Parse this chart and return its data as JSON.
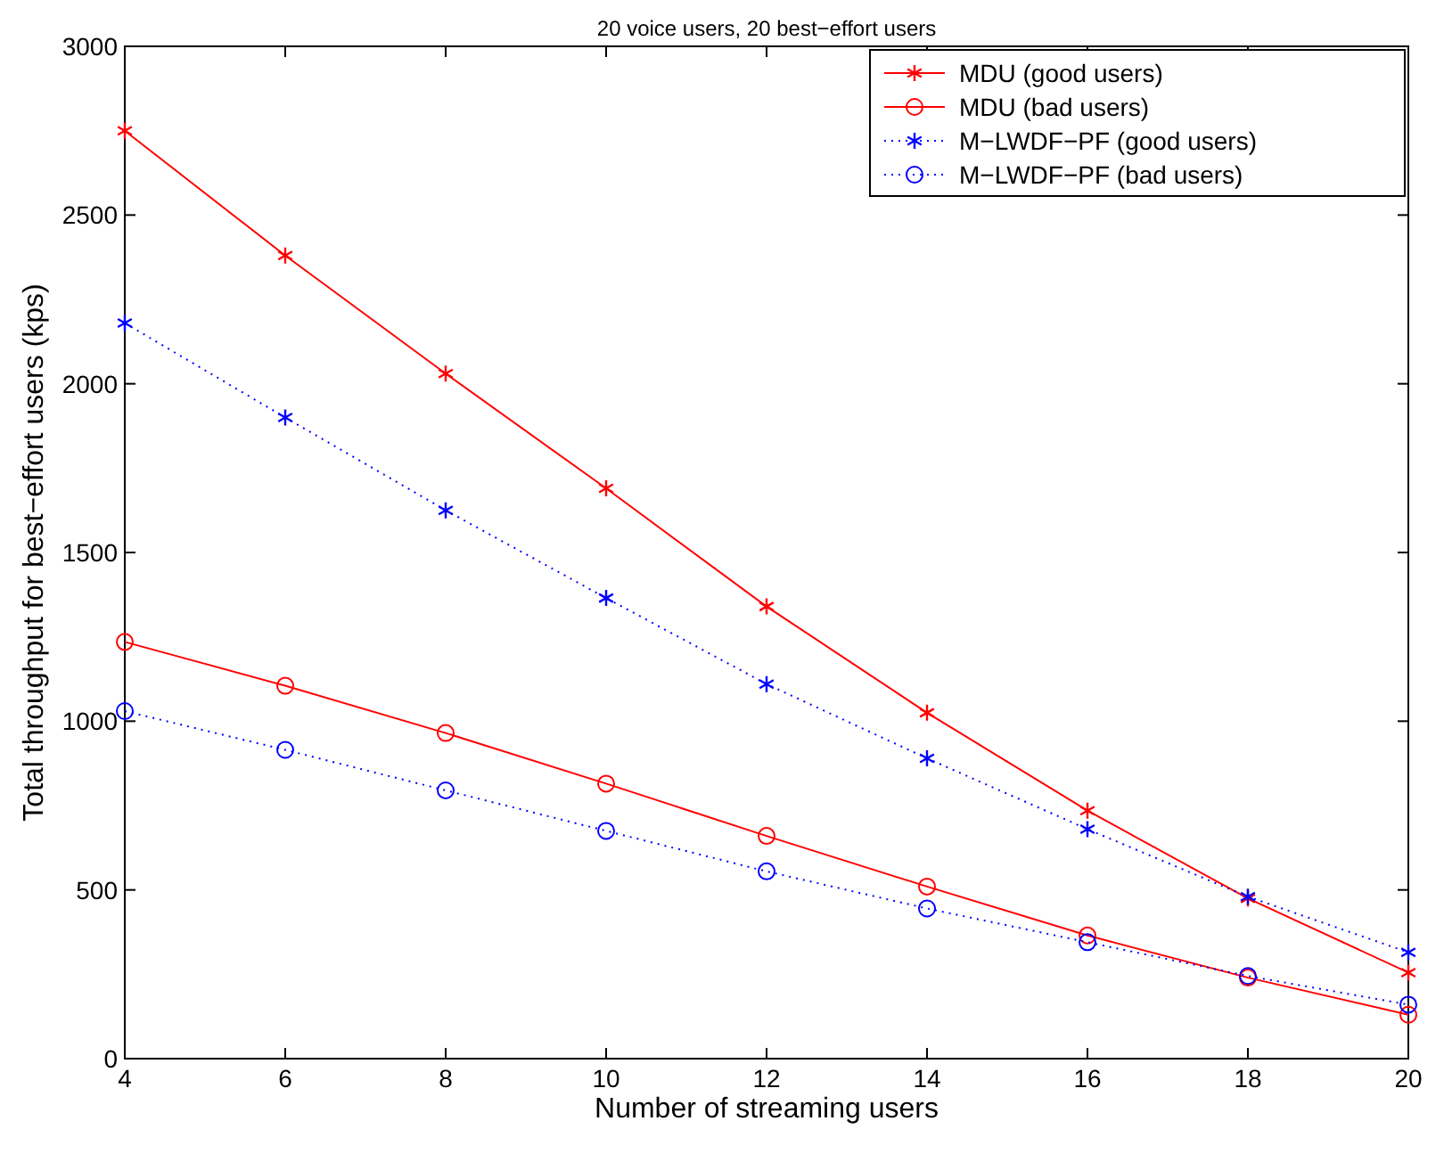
{
  "chart_data": {
    "type": "line",
    "title": "20 voice users, 20 best−effort users",
    "xlabel": "Number of streaming users",
    "ylabel": "Total throughput for best−effort users (kps)",
    "x": [
      4,
      6,
      8,
      10,
      12,
      14,
      16,
      18,
      20
    ],
    "xlim": [
      4,
      20
    ],
    "xticks": [
      4,
      6,
      8,
      10,
      12,
      14,
      16,
      18,
      20
    ],
    "ylim": [
      0,
      3000
    ],
    "yticks": [
      0,
      500,
      1000,
      1500,
      2000,
      2500,
      3000
    ],
    "grid": false,
    "legend": "top right",
    "series": [
      {
        "name": "MDU (good users)",
        "color": "#ff0000",
        "marker": "cross",
        "line_style": "solid",
        "values": [
          2750,
          2380,
          2030,
          1690,
          1340,
          1025,
          735,
          475,
          255
        ]
      },
      {
        "name": "MDU (bad users)",
        "color": "#ff0000",
        "marker": "circle",
        "line_style": "solid",
        "values": [
          1235,
          1105,
          965,
          815,
          660,
          510,
          365,
          240,
          130
        ]
      },
      {
        "name": "M−LWDF−PF (good users)",
        "color": "#0000ff",
        "marker": "cross",
        "line_style": "dotted",
        "values": [
          2180,
          1900,
          1625,
          1365,
          1110,
          890,
          680,
          480,
          315
        ]
      },
      {
        "name": "M−LWDF−PF (bad users)",
        "color": "#0000ff",
        "marker": "circle",
        "line_style": "dotted",
        "values": [
          1030,
          915,
          795,
          675,
          555,
          445,
          345,
          245,
          160
        ]
      }
    ]
  }
}
